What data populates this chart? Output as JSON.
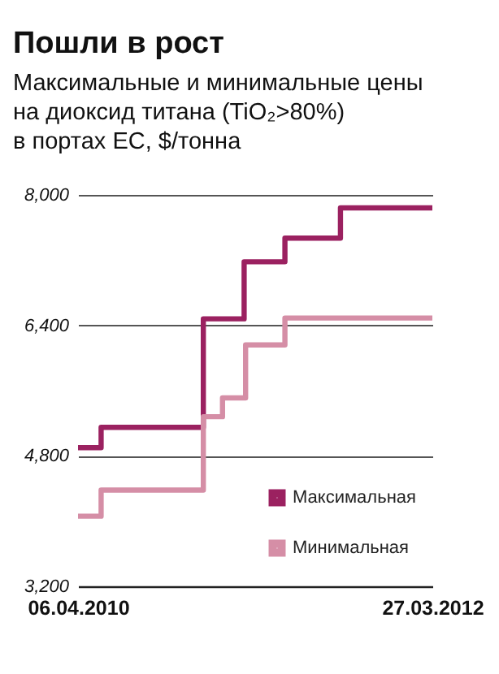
{
  "chart_data": {
    "type": "step",
    "title": "Пошли в рост",
    "subtitle": "Максимальные и минимальные цены\nна диоксид титана (TiO₂>80%)\nв портах ЕС, $/тонна",
    "series": [
      {
        "name": "Максимальная",
        "color": "#9b2160",
        "x": [
          "2010-04-06",
          "2010-05-23",
          "2010-12-17",
          "2011-03-10",
          "2011-06-01",
          "2011-09-22",
          "2012-03-27"
        ],
        "values": [
          4900,
          5150,
          6480,
          7180,
          7470,
          7840,
          7840
        ]
      },
      {
        "name": "Минимальная",
        "color": "#d58ea6",
        "x": [
          "2010-04-06",
          "2010-05-23",
          "2010-12-17",
          "2011-01-25",
          "2011-03-13",
          "2011-06-01",
          "2012-03-27"
        ],
        "values": [
          4060,
          4380,
          5280,
          5510,
          6160,
          6490,
          6490
        ]
      }
    ],
    "xlim": [
      "2010-04-06",
      "2012-03-27"
    ],
    "xticks": [
      {
        "value": "2010-04-06",
        "label": "06.04.2010"
      },
      {
        "value": "2012-03-27",
        "label": "27.03.2012"
      }
    ],
    "ylim": [
      3200,
      8000
    ],
    "yticks": [
      {
        "value": 3200,
        "label": "3,200"
      },
      {
        "value": 4800,
        "label": "4,800"
      },
      {
        "value": 6400,
        "label": "6,400"
      },
      {
        "value": 8000,
        "label": "8,000"
      }
    ],
    "grid": "y",
    "legend": "bottom right",
    "line_style": "solid",
    "marker": "none"
  }
}
